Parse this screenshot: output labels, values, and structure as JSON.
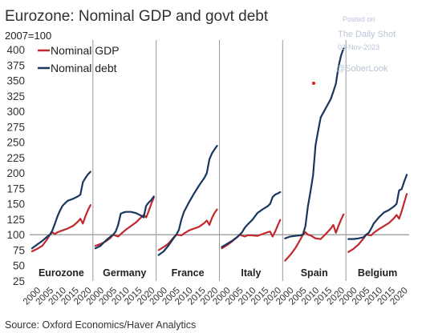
{
  "chart_data": {
    "type": "line",
    "title": "Eurozone: Nominal GDP and govt debt",
    "ylabel": "2007=100",
    "ylim": [
      25,
      400
    ],
    "yticks": [
      25,
      50,
      75,
      100,
      125,
      150,
      175,
      200,
      225,
      250,
      275,
      300,
      325,
      350,
      375,
      400
    ],
    "xlim": [
      2000,
      2023
    ],
    "xticks": [
      2000,
      2005,
      2010,
      2015,
      2020
    ],
    "reference_line": 100,
    "legend": {
      "position": "top-left",
      "entries": [
        "Nominal GDP",
        "Nominal debt"
      ]
    },
    "source": "Source: Oxford Economics/Haver Analytics",
    "colors": {
      "gdp": "#c0282d",
      "debt": "#17375e",
      "divider": "#999999"
    },
    "panels": [
      {
        "name": "Eurozone",
        "gdp": {
          "x": [
            2000,
            2002,
            2004,
            2006,
            2007,
            2008,
            2009,
            2010,
            2012,
            2014,
            2016,
            2018,
            2019,
            2020,
            2021,
            2022,
            2023
          ],
          "y": [
            73,
            77,
            82,
            93,
            100,
            104,
            101,
            104,
            107,
            110,
            114,
            121,
            126,
            118,
            130,
            140,
            148
          ]
        },
        "debt": {
          "x": [
            2000,
            2002,
            2004,
            2006,
            2007,
            2008,
            2009,
            2010,
            2011,
            2012,
            2014,
            2016,
            2018,
            2019,
            2020,
            2021,
            2022,
            2023
          ],
          "y": [
            78,
            84,
            90,
            97,
            100,
            107,
            118,
            130,
            139,
            147,
            155,
            158,
            162,
            165,
            185,
            192,
            198,
            202
          ]
        }
      },
      {
        "name": "Germany",
        "gdp": {
          "x": [
            2000,
            2002,
            2004,
            2006,
            2007,
            2009,
            2010,
            2012,
            2014,
            2016,
            2018,
            2019,
            2020,
            2021,
            2022,
            2023
          ],
          "y": [
            82,
            85,
            89,
            95,
            100,
            97,
            101,
            108,
            114,
            120,
            128,
            132,
            128,
            138,
            150,
            160
          ]
        },
        "debt": {
          "x": [
            2000,
            2002,
            2004,
            2006,
            2007,
            2008,
            2009,
            2010,
            2011,
            2012,
            2014,
            2016,
            2018,
            2019,
            2020,
            2021,
            2022,
            2023
          ],
          "y": [
            78,
            82,
            90,
            97,
            100,
            105,
            116,
            134,
            136,
            137,
            137,
            135,
            131,
            128,
            147,
            152,
            156,
            162
          ]
        }
      },
      {
        "name": "France",
        "gdp": {
          "x": [
            2000,
            2002,
            2004,
            2006,
            2007,
            2009,
            2010,
            2012,
            2014,
            2016,
            2018,
            2019,
            2020,
            2021,
            2022,
            2023
          ],
          "y": [
            75,
            80,
            86,
            96,
            100,
            99,
            102,
            107,
            110,
            113,
            119,
            123,
            116,
            127,
            135,
            141
          ]
        },
        "debt": {
          "x": [
            2000,
            2002,
            2004,
            2006,
            2007,
            2008,
            2009,
            2010,
            2012,
            2014,
            2016,
            2018,
            2019,
            2020,
            2021,
            2022,
            2023
          ],
          "y": [
            67,
            73,
            83,
            95,
            100,
            108,
            125,
            137,
            153,
            167,
            180,
            192,
            200,
            222,
            232,
            238,
            244
          ]
        }
      },
      {
        "name": "Italy",
        "gdp": {
          "x": [
            2000,
            2002,
            2004,
            2006,
            2007,
            2009,
            2010,
            2012,
            2014,
            2016,
            2018,
            2019,
            2020,
            2021,
            2022,
            2023
          ],
          "y": [
            78,
            83,
            89,
            96,
            100,
            97,
            99,
            99,
            98,
            101,
            104,
            105,
            97,
            105,
            115,
            124
          ]
        },
        "debt": {
          "x": [
            2000,
            2002,
            2004,
            2006,
            2007,
            2008,
            2009,
            2010,
            2012,
            2014,
            2016,
            2018,
            2019,
            2020,
            2021,
            2022,
            2023
          ],
          "y": [
            80,
            85,
            90,
            96,
            100,
            104,
            111,
            116,
            124,
            135,
            141,
            146,
            150,
            161,
            165,
            167,
            169
          ]
        }
      },
      {
        "name": "Spain",
        "gdp": {
          "x": [
            2000,
            2002,
            2004,
            2006,
            2007,
            2008,
            2009,
            2010,
            2012,
            2014,
            2016,
            2018,
            2019,
            2020,
            2021,
            2022,
            2023
          ],
          "y": [
            58,
            67,
            78,
            92,
            100,
            104,
            100,
            99,
            94,
            93,
            101,
            110,
            116,
            103,
            114,
            124,
            133
          ]
        },
        "debt": {
          "x": [
            2000,
            2002,
            2004,
            2006,
            2007,
            2008,
            2009,
            2010,
            2011,
            2012,
            2013,
            2014,
            2016,
            2018,
            2019,
            2020,
            2021,
            2022,
            2023
          ],
          "y": [
            94,
            97,
            98,
            99,
            100,
            114,
            146,
            170,
            196,
            245,
            268,
            290,
            305,
            320,
            332,
            345,
            372,
            390,
            402
          ]
        }
      },
      {
        "name": "Belgium",
        "gdp": {
          "x": [
            2000,
            2002,
            2004,
            2006,
            2007,
            2009,
            2010,
            2012,
            2014,
            2016,
            2018,
            2019,
            2020,
            2021,
            2022,
            2023
          ],
          "y": [
            72,
            77,
            84,
            94,
            100,
            99,
            103,
            109,
            114,
            119,
            127,
            132,
            126,
            138,
            152,
            166
          ]
        },
        "debt": {
          "x": [
            2000,
            2002,
            2004,
            2006,
            2007,
            2008,
            2009,
            2010,
            2012,
            2014,
            2016,
            2018,
            2019,
            2020,
            2021,
            2022,
            2023
          ],
          "y": [
            93,
            93,
            94,
            96,
            100,
            103,
            110,
            118,
            128,
            136,
            140,
            146,
            150,
            172,
            174,
            186,
            197
          ]
        }
      }
    ]
  },
  "watermark": {
    "line1": "Posted on",
    "line2": "The Daily Shot",
    "line3": "03-Nov-2023",
    "line4": "@SoberLook"
  }
}
